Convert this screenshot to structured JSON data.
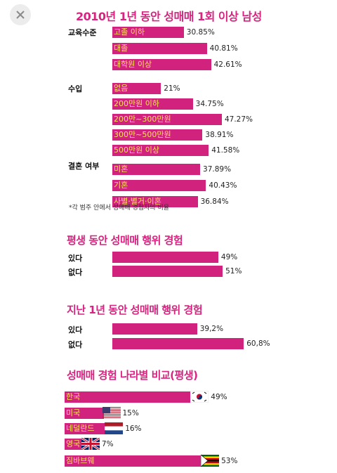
{
  "ui": {
    "close_icon": "close-icon"
  },
  "chart_data": [
    {
      "type": "bar",
      "title": "2010년 1년 동안 성매매 1회 이상 남성",
      "note": "*각 범주 안에서 성매매 경험자의 비율",
      "groups": [
        {
          "name": "교육수준",
          "items": [
            {
              "label": "고졸 이하",
              "value": 30.85,
              "text": "30.85%"
            },
            {
              "label": "대졸",
              "value": 40.81,
              "text": "40.81%"
            },
            {
              "label": "대학원 이상",
              "value": 42.61,
              "text": "42.61%"
            }
          ]
        },
        {
          "name": "수입",
          "items": [
            {
              "label": "없음",
              "value": 21,
              "text": "21%"
            },
            {
              "label": "200만원 이하",
              "value": 34.75,
              "text": "34.75%"
            },
            {
              "label": "200만~300만원",
              "value": 47.27,
              "text": "47.27%"
            },
            {
              "label": "300만~500만원",
              "value": 38.91,
              "text": "38.91%"
            },
            {
              "label": "500만원 이상",
              "value": 41.58,
              "text": "41.58%"
            }
          ]
        },
        {
          "name": "결혼 여부",
          "items": [
            {
              "label": "미혼",
              "value": 37.89,
              "text": "37.89%"
            },
            {
              "label": "기혼",
              "value": 40.43,
              "text": "40.43%"
            },
            {
              "label": "사별·별거·이혼",
              "value": 36.84,
              "text": "36.84%"
            }
          ]
        }
      ]
    },
    {
      "type": "bar",
      "title": "평생 동안 성매매 행위 경험",
      "categories": [
        "있다",
        "없다"
      ],
      "values": [
        49,
        51
      ],
      "texts": [
        "49%",
        "51%"
      ]
    },
    {
      "type": "bar",
      "title": "지난 1년 동안 성매매 행위 경험",
      "categories": [
        "있다",
        "없다"
      ],
      "values": [
        39.2,
        60.8
      ],
      "texts": [
        "39,2%",
        "60,8%"
      ]
    },
    {
      "type": "bar",
      "title": "성매매 경험 나라별 비교(평생)",
      "categories": [
        "한국",
        "미국",
        "네덜란드",
        "영국",
        "짐바브웨"
      ],
      "values": [
        49,
        15,
        16,
        7,
        53
      ],
      "texts": [
        "49%",
        "15%",
        "16%",
        "7%",
        "53%"
      ],
      "flags": [
        "korea-flag-icon",
        "usa-flag-icon",
        "netherlands-flag-icon",
        "uk-flag-icon",
        "zimbabwe-flag-icon"
      ]
    }
  ]
}
